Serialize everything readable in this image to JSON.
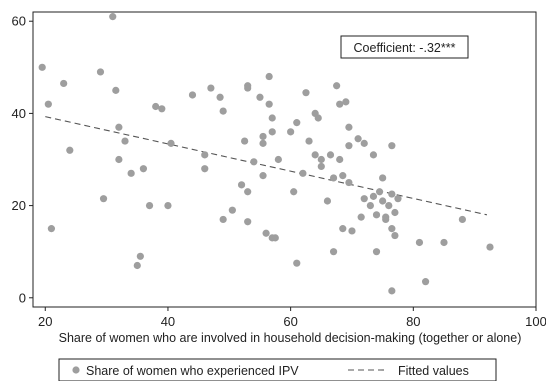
{
  "chart_data": {
    "type": "scatter",
    "title": "",
    "xlabel": "Share of women who are involved in household decision-making (together or alone)",
    "ylabel": "",
    "xlim": [
      18,
      100
    ],
    "ylim": [
      -2,
      62
    ],
    "x_ticks": [
      "20",
      "40",
      "60",
      "80",
      "100"
    ],
    "y_ticks": [
      "0",
      "20",
      "40",
      "60"
    ],
    "grid": false,
    "legend_position": "bottom",
    "annotation": "Coefficient: -.32***",
    "series": [
      {
        "name": "Share of women who experienced IPV",
        "color": "#9e9e9e",
        "marker": "circle",
        "points": [
          [
            19.5,
            50
          ],
          [
            20.5,
            42
          ],
          [
            21,
            15
          ],
          [
            23,
            46.5
          ],
          [
            24,
            32
          ],
          [
            29,
            49
          ],
          [
            29.5,
            21.5
          ],
          [
            31,
            61
          ],
          [
            31.5,
            45
          ],
          [
            32,
            37
          ],
          [
            32,
            30
          ],
          [
            33,
            34
          ],
          [
            34,
            27
          ],
          [
            35,
            7
          ],
          [
            35.5,
            9
          ],
          [
            36,
            28
          ],
          [
            37,
            20
          ],
          [
            38,
            41.5
          ],
          [
            39,
            41
          ],
          [
            40,
            20
          ],
          [
            40.5,
            33.5
          ],
          [
            44,
            44
          ],
          [
            46,
            28
          ],
          [
            46,
            31
          ],
          [
            47,
            45.5
          ],
          [
            48.5,
            43.5
          ],
          [
            49,
            40.5
          ],
          [
            49,
            17
          ],
          [
            50.5,
            19
          ],
          [
            52,
            24.5
          ],
          [
            52.5,
            34
          ],
          [
            53,
            46
          ],
          [
            53,
            45.5
          ],
          [
            53,
            23
          ],
          [
            53,
            16.5
          ],
          [
            54,
            29.5
          ],
          [
            55,
            43.5
          ],
          [
            55.5,
            35
          ],
          [
            55.5,
            33.5
          ],
          [
            55.5,
            26.5
          ],
          [
            56,
            14
          ],
          [
            56.5,
            48
          ],
          [
            56.5,
            42
          ],
          [
            57,
            39
          ],
          [
            57,
            36
          ],
          [
            57,
            13
          ],
          [
            57.5,
            13
          ],
          [
            58,
            30
          ],
          [
            60,
            36
          ],
          [
            60.5,
            23
          ],
          [
            61,
            38
          ],
          [
            61,
            7.5
          ],
          [
            62,
            27
          ],
          [
            62.5,
            44.5
          ],
          [
            63,
            34
          ],
          [
            64,
            40
          ],
          [
            64,
            31
          ],
          [
            64.5,
            39
          ],
          [
            65,
            28.5
          ],
          [
            65,
            30
          ],
          [
            66,
            21
          ],
          [
            66.5,
            31
          ],
          [
            67,
            10
          ],
          [
            67,
            26
          ],
          [
            67.5,
            46
          ],
          [
            68,
            42
          ],
          [
            68,
            30
          ],
          [
            68.5,
            26.5
          ],
          [
            68.5,
            15
          ],
          [
            69,
            42.5
          ],
          [
            69.5,
            37
          ],
          [
            69.5,
            33
          ],
          [
            69.5,
            25
          ],
          [
            70,
            14.5
          ],
          [
            71,
            34.5
          ],
          [
            71.5,
            17.5
          ],
          [
            72,
            33.5
          ],
          [
            72,
            21.5
          ],
          [
            73,
            20
          ],
          [
            73.5,
            22
          ],
          [
            73.5,
            31
          ],
          [
            74,
            18
          ],
          [
            74,
            10
          ],
          [
            74.5,
            23
          ],
          [
            75,
            26
          ],
          [
            75,
            21
          ],
          [
            75.5,
            17.5
          ],
          [
            75.5,
            17
          ],
          [
            76,
            20
          ],
          [
            76.5,
            22.5
          ],
          [
            76.5,
            33
          ],
          [
            76.5,
            15
          ],
          [
            77,
            18.5
          ],
          [
            77,
            13.5
          ],
          [
            77.5,
            21.5
          ],
          [
            76.5,
            1.5
          ],
          [
            81,
            12
          ],
          [
            82,
            3.5
          ],
          [
            85,
            12
          ],
          [
            88,
            17
          ],
          [
            92.5,
            11
          ]
        ]
      },
      {
        "name": "Fitted values",
        "color": "#555555",
        "style": "dashed",
        "line": [
          [
            20,
            39.3
          ],
          [
            92,
            18
          ]
        ]
      }
    ]
  }
}
